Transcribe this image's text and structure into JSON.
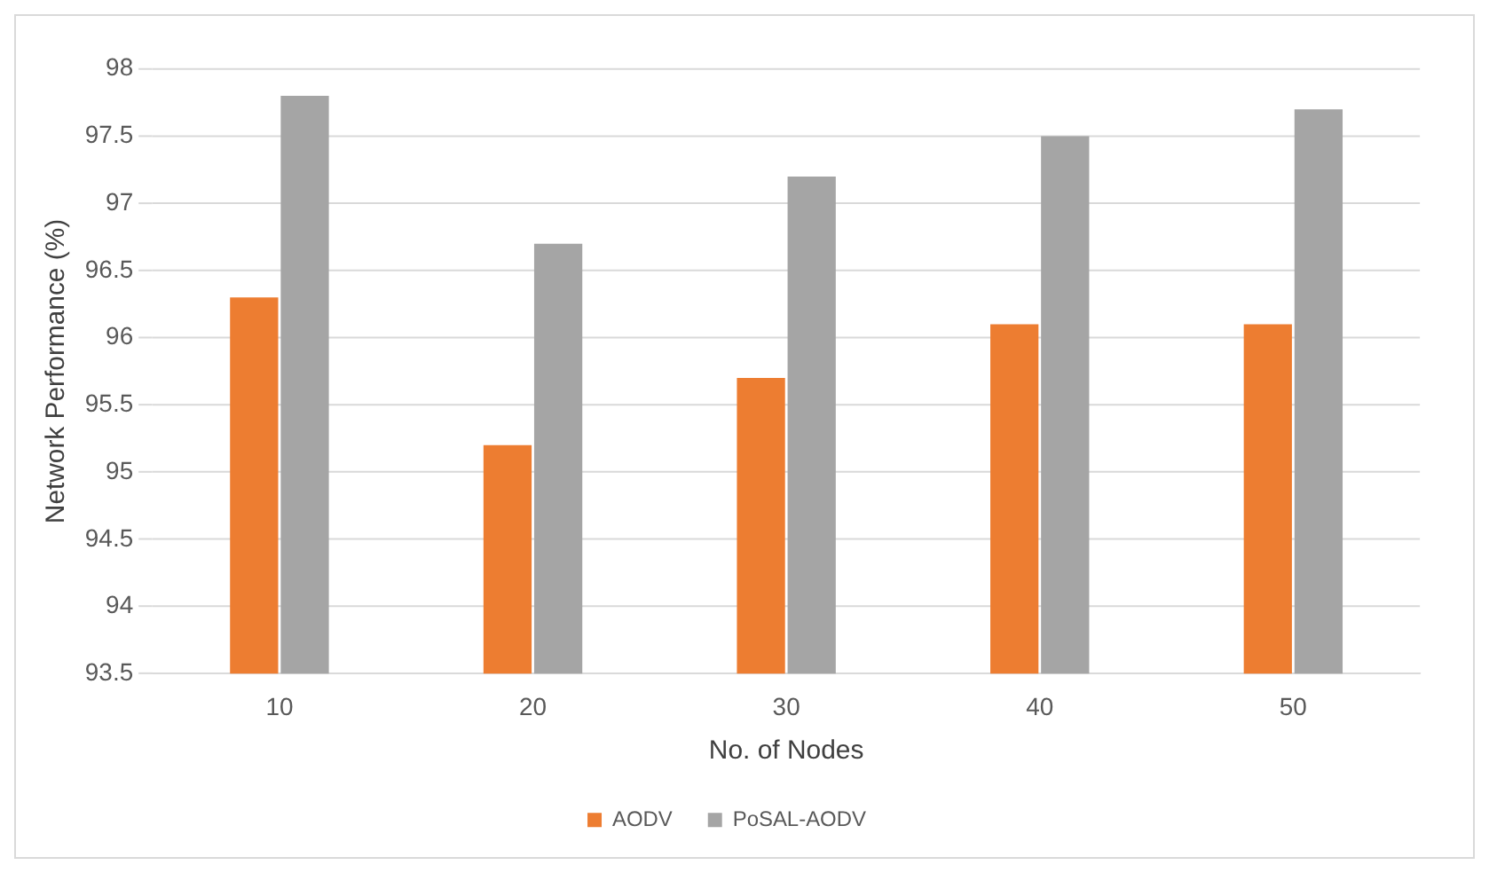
{
  "chart_data": {
    "type": "bar",
    "xlabel": "No. of Nodes",
    "ylabel": "Network Performance (%)",
    "categories": [
      "10",
      "20",
      "30",
      "40",
      "50"
    ],
    "series": [
      {
        "name": "AODV",
        "color": "#ed7d31",
        "values": [
          96.3,
          95.2,
          95.7,
          96.1,
          96.1
        ]
      },
      {
        "name": "PoSAL-AODV",
        "color": "#a5a5a5",
        "values": [
          97.8,
          96.7,
          97.2,
          97.5,
          97.7
        ]
      }
    ],
    "ylim": [
      93.5,
      98
    ],
    "yticks": [
      93.5,
      94,
      94.5,
      95,
      95.5,
      96,
      96.5,
      97,
      97.5,
      98
    ],
    "grid": "y",
    "legend": "bottom"
  }
}
